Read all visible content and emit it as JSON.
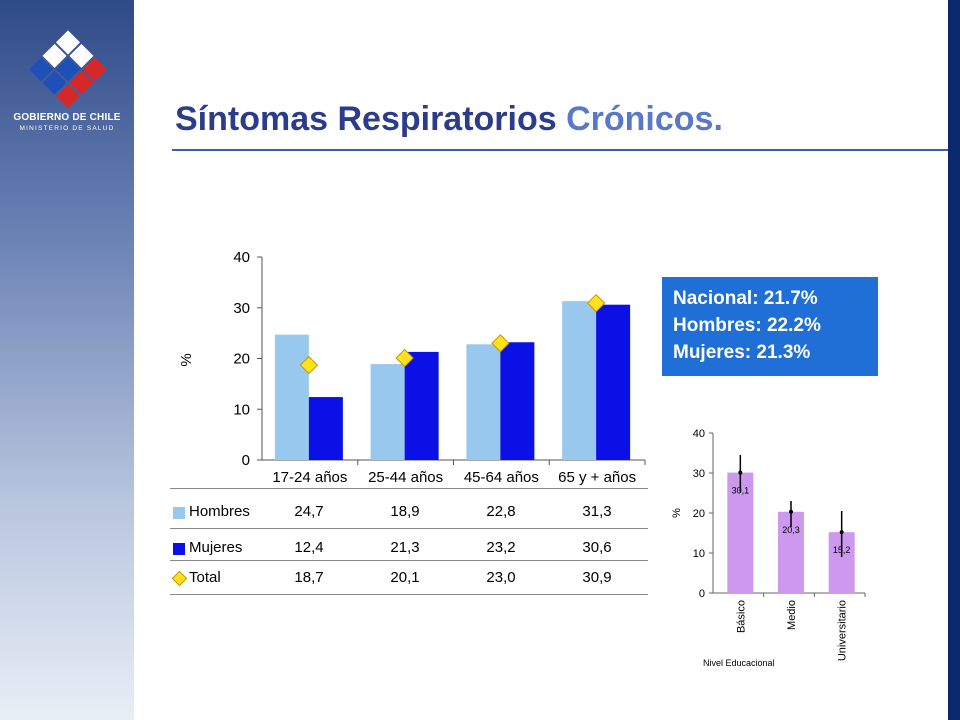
{
  "slide": {
    "title_part1": "Síntomas Respiratorios",
    "title_part2": "Crónicos.",
    "org_name": "GOBIERNO DE CHILE",
    "org_sub": "MINISTERIO DE SALUD",
    "colors": {
      "title": "#2c3c8c",
      "accent": "#5a78c8",
      "hombres": "#99c8ee",
      "mujeres": "#0a10e6",
      "total": "#ffe31a",
      "edu_bar": "#cc99ee",
      "stats_box": "#1f6fd6"
    }
  },
  "stats": {
    "nacional": "Nacional: 21.7%",
    "hombres": "Hombres: 22.2%",
    "mujeres": "Mujeres:  21.3%"
  },
  "table": {
    "rows": [
      {
        "label": "Hombres",
        "values": [
          "24,7",
          "18,9",
          "22,8",
          "31,3"
        ]
      },
      {
        "label": "Mujeres",
        "values": [
          "12,4",
          "21,3",
          "23,2",
          "30,6"
        ]
      },
      {
        "label": "Total",
        "values": [
          "18,7",
          "20,1",
          "23,0",
          "30,9"
        ]
      }
    ]
  },
  "chart_data": [
    {
      "type": "bar",
      "categories": [
        "17-24 años",
        "25-44 años",
        "45-64 años",
        "65 y + años"
      ],
      "series": [
        {
          "name": "Hombres",
          "values": [
            24.7,
            18.9,
            22.8,
            31.3
          ]
        },
        {
          "name": "Mujeres",
          "values": [
            12.4,
            21.3,
            23.2,
            30.6
          ]
        },
        {
          "name": "Total",
          "values": [
            18.7,
            20.1,
            23.0,
            30.9
          ],
          "marker": "diamond"
        }
      ],
      "ylabel": "%",
      "ylim": [
        0,
        40
      ],
      "yticks": [
        0,
        10,
        20,
        30,
        40
      ],
      "legend": "table-below"
    },
    {
      "type": "bar",
      "categories": [
        "Básico",
        "Medio",
        "Universitario"
      ],
      "values": [
        30.1,
        20.3,
        15.2
      ],
      "value_labels": [
        "30,1",
        "20,3",
        "15,2"
      ],
      "error_low": [
        25.0,
        16.5,
        9.0
      ],
      "error_high": [
        34.5,
        23.0,
        20.5
      ],
      "xlabel": "Nivel Educacional",
      "ylabel": "%",
      "ylim": [
        0,
        40
      ],
      "yticks": [
        0,
        10,
        20,
        30,
        40
      ]
    }
  ]
}
